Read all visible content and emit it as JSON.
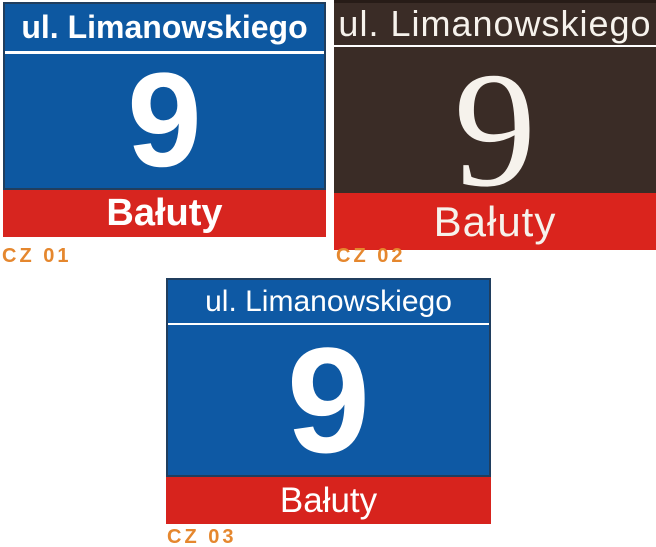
{
  "canvas": {
    "background": "#ffffff"
  },
  "signs": [
    {
      "variant_label": "CZ 01",
      "street": "ul. Limanowskiego",
      "number": "9",
      "district": "Bałuty",
      "colors": {
        "plate": "#0d58a1",
        "strip": "#d7251f",
        "border": "#203e5e",
        "text": "#ffffff"
      }
    },
    {
      "variant_label": "CZ 02",
      "street": "ul. Limanowskiego",
      "number": "9",
      "district": "Bałuty",
      "colors": {
        "plate": "#3a2c26",
        "strip": "#da241d",
        "border": "#271c17",
        "text": "#f6f2ec"
      }
    },
    {
      "variant_label": "CZ 03",
      "street": "ul. Limanowskiego",
      "number": "9",
      "district": "Bałuty",
      "colors": {
        "plate": "#0e59a4",
        "strip": "#d7231d",
        "border": "#203e5e",
        "text": "#ffffff"
      }
    }
  ],
  "label_color": "#e5872e"
}
